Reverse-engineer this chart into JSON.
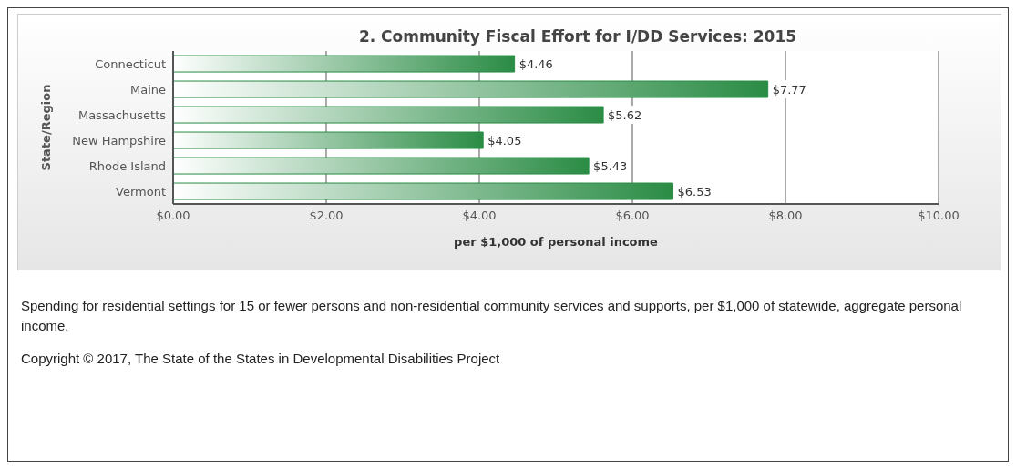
{
  "chart_data": {
    "type": "bar",
    "orientation": "horizontal",
    "title": "2. Community Fiscal Effort for I/DD Services: 2015",
    "ylabel": "State/Region",
    "xlabel": "per $1,000 of personal income",
    "categories": [
      "Connecticut",
      "Maine",
      "Massachusetts",
      "New Hampshire",
      "Rhode Island",
      "Vermont"
    ],
    "values": [
      4.46,
      7.77,
      5.62,
      4.05,
      5.43,
      6.53
    ],
    "value_labels": [
      "$4.46",
      "$7.77",
      "$5.62",
      "$4.05",
      "$5.43",
      "$6.53"
    ],
    "color": "#2a8c45",
    "xlim": [
      0,
      10
    ],
    "xticks": [
      {
        "value": 0,
        "label": "$0.00"
      },
      {
        "value": 2,
        "label": "$2.00"
      },
      {
        "value": 4,
        "label": "$4.00"
      },
      {
        "value": 6,
        "label": "$6.00"
      },
      {
        "value": 8,
        "label": "$8.00"
      },
      {
        "value": 10,
        "label": "$10.00"
      }
    ],
    "grid": "x",
    "annotations": [
      "Spending for residential settings for 15 or fewer persons and non-residential community services and supports, per $1,000 of statewide, aggregate personal income.",
      "Copyright © 2017, The State of the States in Developmental Disabilities Project"
    ]
  }
}
